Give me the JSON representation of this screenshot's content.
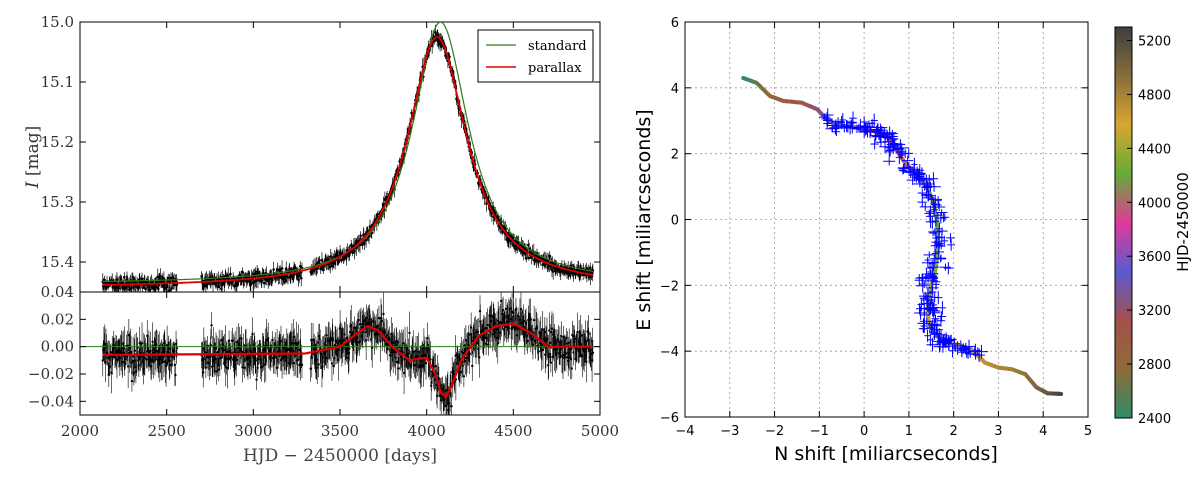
{
  "chart_data": [
    {
      "type": "line",
      "panel": "light-curve",
      "ylabel_italic": "I",
      "ylabel_unit": "[mag]",
      "xlim": [
        2000,
        5000
      ],
      "ylim": [
        15.45,
        15.0
      ],
      "yticks": [
        15.0,
        15.1,
        15.2,
        15.3,
        15.4
      ],
      "ytick_labels": [
        "15.0",
        "15.1",
        "15.2",
        "15.3",
        "15.4"
      ],
      "legend": {
        "position": "top-right",
        "entries": [
          "standard",
          "parallax"
        ]
      },
      "series": [
        {
          "name": "standard",
          "color": "#2e7d1a",
          "model": {
            "t0": 4080,
            "peak_mag": 15.0,
            "base_mag": 15.437,
            "width": 200
          }
        },
        {
          "name": "parallax",
          "color": "#e00000",
          "model": {
            "t0": 4060,
            "peak_mag": 15.025,
            "base_mag": 15.443,
            "width": 210
          }
        }
      ],
      "observations": {
        "segments": [
          [
            2130,
            2560
          ],
          [
            2700,
            3280
          ],
          [
            3330,
            4960
          ]
        ],
        "error_mag": 0.012
      }
    },
    {
      "type": "line",
      "panel": "residuals",
      "xlabel": "HJD − 2450000 [days]",
      "xlim": [
        2000,
        5000
      ],
      "xticks": [
        2000,
        2500,
        3000,
        3500,
        4000,
        4500,
        5000
      ],
      "xtick_labels": [
        "2000",
        "2500",
        "3000",
        "3500",
        "4000",
        "4500",
        "5000"
      ],
      "ylim": [
        -0.05,
        0.04
      ],
      "yticks": [
        0.04,
        0.02,
        0.0,
        -0.02,
        -0.04
      ],
      "ytick_labels": [
        "0.04",
        "0.02",
        "0.00",
        "−0.02",
        "−0.04"
      ],
      "series": [
        {
          "name": "standard (zero line)",
          "color": "#2e7d1a",
          "x": [
            2000,
            5000
          ],
          "y": [
            0,
            0
          ]
        },
        {
          "name": "parallax",
          "color": "#e00000",
          "x": [
            2130,
            3300,
            3500,
            3600,
            3660,
            3720,
            3800,
            3900,
            4000,
            4050,
            4080,
            4110,
            4140,
            4200,
            4300,
            4400,
            4500,
            4600,
            4700,
            4950
          ],
          "y": [
            -0.006,
            -0.005,
            0.0,
            0.01,
            0.015,
            0.012,
            0.0,
            -0.01,
            -0.008,
            -0.02,
            -0.033,
            -0.037,
            -0.03,
            -0.01,
            0.008,
            0.015,
            0.017,
            0.01,
            0.0,
            0.0
          ]
        }
      ]
    },
    {
      "type": "scatter",
      "panel": "astrometry",
      "xlabel": "N shift [miliarcseconds]",
      "ylabel": "E shift [miliarcseconds]",
      "xlim": [
        -4,
        5
      ],
      "ylim": [
        -6,
        6
      ],
      "xticks": [
        -4,
        -3,
        -2,
        -1,
        0,
        1,
        2,
        3,
        4,
        5
      ],
      "xtick_labels": [
        "−4",
        "−3",
        "−2",
        "−1",
        "0",
        "1",
        "2",
        "3",
        "4",
        "5"
      ],
      "yticks": [
        -6,
        -4,
        -2,
        0,
        2,
        4,
        6
      ],
      "ytick_labels": [
        "−6",
        "−4",
        "−2",
        "0",
        "2",
        "4",
        "6"
      ],
      "grid": true,
      "trajectory": {
        "x": [
          -2.7,
          -2.4,
          -2.1,
          -1.8,
          -1.4,
          -1.05,
          -0.8,
          -0.5,
          -0.2,
          0.1,
          0.4,
          0.55,
          0.7,
          0.9,
          1.1,
          1.3,
          1.45,
          1.55,
          1.62,
          1.65,
          1.64,
          1.58,
          1.5,
          1.45,
          1.42,
          1.45,
          1.6,
          1.8,
          2.1,
          2.4,
          2.7,
          3.0,
          3.3,
          3.6,
          3.85,
          4.1,
          4.4
        ],
        "y": [
          4.3,
          4.15,
          3.75,
          3.6,
          3.55,
          3.35,
          3.0,
          2.85,
          2.8,
          2.72,
          2.62,
          2.45,
          2.15,
          1.75,
          1.45,
          1.2,
          0.85,
          0.5,
          0.0,
          -0.6,
          -1.1,
          -1.6,
          -2.0,
          -2.4,
          -2.8,
          -3.15,
          -3.5,
          -3.75,
          -3.8,
          -3.95,
          -4.35,
          -4.5,
          -4.55,
          -4.7,
          -5.1,
          -5.28,
          -5.3
        ],
        "t": [
          2400,
          2600,
          2800,
          2950,
          3100,
          3250,
          3400,
          3500,
          3600,
          3700,
          3780,
          3850,
          3920,
          3980,
          4030,
          4080,
          4120,
          4160,
          4200,
          4240,
          4280,
          4320,
          4360,
          4400,
          4440,
          4480,
          4520,
          4560,
          4600,
          4650,
          4700,
          4760,
          4820,
          4900,
          5000,
          5100,
          5300
        ]
      },
      "observations_color": "#0000ff",
      "colorbar": {
        "label": "HJD-2450000",
        "min": 2400,
        "max": 5300,
        "ticks": [
          2400,
          2800,
          3200,
          3600,
          4000,
          4400,
          4800,
          5200
        ],
        "tick_labels": [
          "2400",
          "2800",
          "3200",
          "3600",
          "4000",
          "4400",
          "4800",
          "5200"
        ],
        "colors": [
          "#2f8b66",
          "#8f6b3a",
          "#a4504a",
          "#5a5ad0",
          "#e03a98",
          "#64ac37",
          "#d9a531",
          "#856e3c",
          "#3e3e3e"
        ]
      }
    }
  ]
}
